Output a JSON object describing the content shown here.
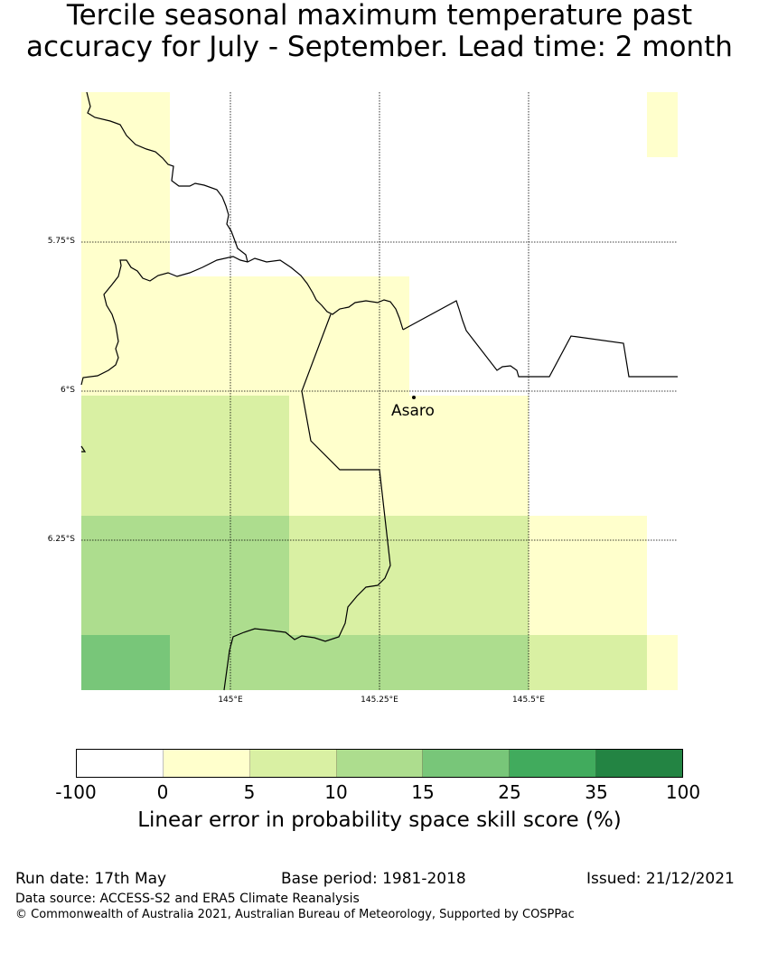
{
  "title": {
    "line1": "Tercile seasonal maximum temperature past",
    "line2": "accuracy for July - September. Lead time: 2 month"
  },
  "map": {
    "lat_labels": [
      "5.75°S",
      "6°S",
      "6.25°S"
    ],
    "lon_labels": [
      "145°E",
      "145.25°E",
      "145.5°E"
    ],
    "place": {
      "name": "Asaro"
    },
    "grid_values_note_colors": {
      "c0": "#ffffff",
      "c1": "#ffffcc",
      "c2": "#d9f0a3",
      "c3": "#addd8e",
      "c4": "#78c679",
      "c5": "#41ab5d",
      "c6": "#238443"
    }
  },
  "colorbar": {
    "ticks": [
      "-100",
      "0",
      "5",
      "10",
      "15",
      "25",
      "35",
      "100"
    ],
    "colors": [
      "#ffffff",
      "#ffffcc",
      "#d9f0a3",
      "#addd8e",
      "#78c679",
      "#41ab5d",
      "#238443"
    ],
    "label": "Linear error in probability space skill score (%)"
  },
  "footer": {
    "run_date": "Run date: 17th May",
    "base_period": "Base period: 1981-2018",
    "issued": "Issued: 21/12/2021",
    "data_source": "Data source: ACCESS-S2 and ERA5 Climate Reanalysis",
    "copyright": "© Commonwealth of Australia 2021, Australian Bureau of Meteorology, Supported by COSPPac"
  }
}
